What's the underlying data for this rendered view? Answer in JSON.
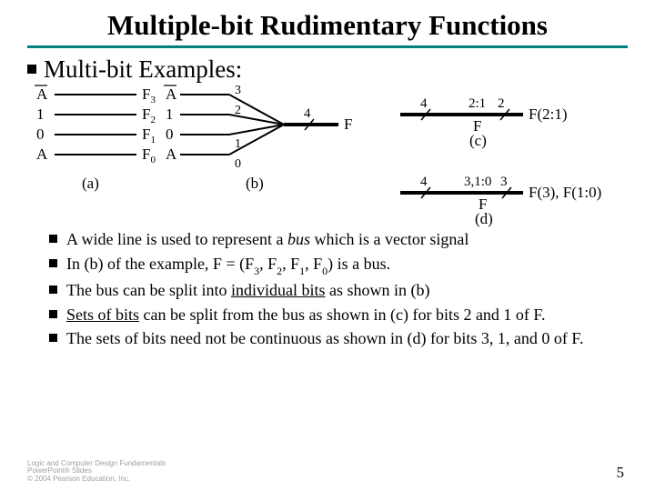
{
  "title": {
    "text": "Multiple-bit Rudimentary Functions",
    "fontsize": 31
  },
  "divider": {
    "color": "#008080",
    "height": 3
  },
  "subhead": {
    "text": "Multi-bit Examples:",
    "fontsize": 27
  },
  "diagram": {
    "textsize": 17,
    "a": {
      "rows": [
        {
          "left": "A",
          "left_overline": true,
          "right_pre": "F",
          "right_sub": "3"
        },
        {
          "left": "1",
          "right_pre": "F",
          "right_sub": "2"
        },
        {
          "left": "0",
          "right_pre": "F",
          "right_sub": "1"
        },
        {
          "left": "A",
          "right_pre": "F",
          "right_sub": "0"
        }
      ],
      "caption": "(a)",
      "line_color": "#000000",
      "line_width": 2
    },
    "b": {
      "rows": [
        {
          "left": "A",
          "left_overline": true,
          "wire": "3"
        },
        {
          "left": "1",
          "wire": "2"
        },
        {
          "left": "0",
          "wire": "1"
        },
        {
          "left": "A",
          "wire": "0"
        }
      ],
      "bus_label": "4",
      "out_label": "F",
      "caption": "(b)"
    },
    "c": {
      "in_label": "4",
      "slice_label": "2:1",
      "out_count": "2",
      "out_label": "F(2:1)",
      "mid_label": "F",
      "caption": "(c)"
    },
    "d": {
      "in_label": "4",
      "slice_label": "3,1:0",
      "out_count": "3",
      "out_label": "F(3), F(1:0)",
      "mid_label": "F",
      "caption": "(d)"
    },
    "bus_stroke": "#000000",
    "bus_width_thick": 4,
    "bus_width_thin": 2
  },
  "bullets": {
    "fontsize": 18,
    "items": [
      "A wide line is used to represent a <i>bus</i> which is a vector signal",
      " In (b) of the example, F = (F<sub>3</sub>, F<sub>2</sub>, F<sub>1</sub>, F<sub>0</sub>) is a bus.",
      "The bus can be split into <u>individual bits</u> as shown in (b)",
      "<u>Sets of bits</u> can be split from the bus as shown in (c) for bits 2 and 1 of F.",
      "The sets of bits need not be continuous as shown in (d) for bits 3, 1, and 0 of F."
    ]
  },
  "footer": {
    "line1": "Logic and Computer Design Fundamentals",
    "line2": "PowerPoint® Slides",
    "line3": "© 2004 Pearson Education, Inc."
  },
  "page_number": {
    "text": "5",
    "fontsize": 17
  }
}
